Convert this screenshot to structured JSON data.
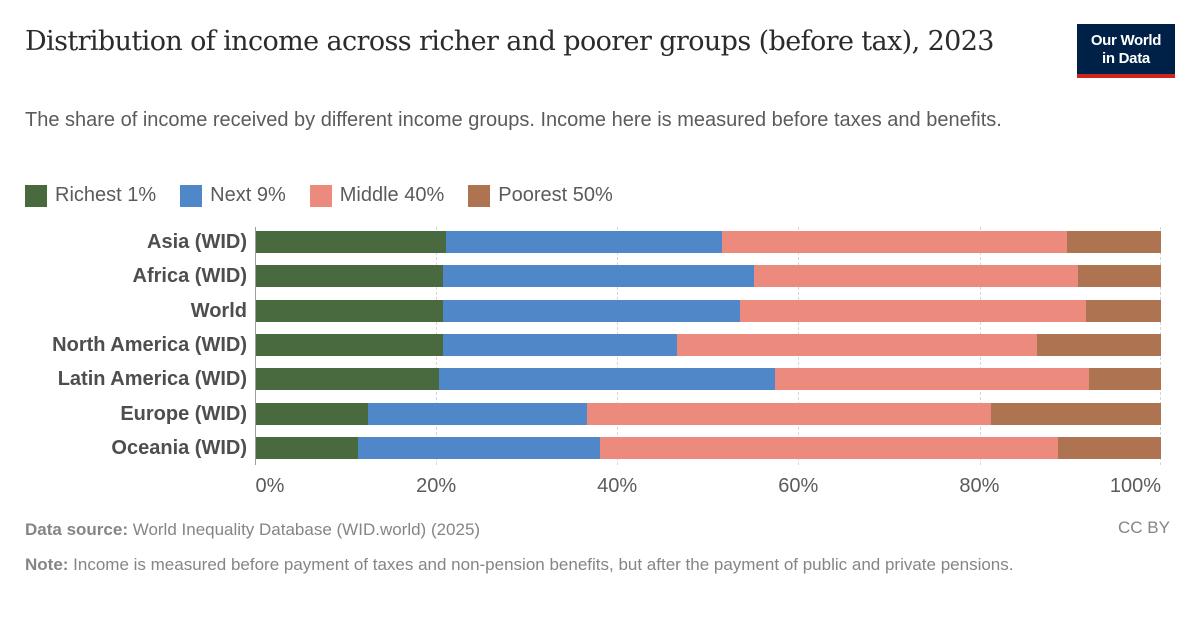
{
  "header": {
    "title": "Distribution of income across richer and poorer groups (before tax), 2023",
    "subtitle": "The share of income received by different income groups. Income here is measured before taxes and benefits.",
    "logo_line1": "Our World",
    "logo_line2": "in Data"
  },
  "legend": [
    {
      "label": "Richest 1%",
      "color": "#486a3e"
    },
    {
      "label": "Next 9%",
      "color": "#5087c8"
    },
    {
      "label": "Middle 40%",
      "color": "#eb8a7d"
    },
    {
      "label": "Poorest 50%",
      "color": "#ae7452"
    }
  ],
  "axis": {
    "ticks": [
      "0%",
      "20%",
      "40%",
      "60%",
      "80%",
      "100%"
    ]
  },
  "footer": {
    "source_label": "Data source:",
    "source_text": " World Inequality Database (WID.world) (2025)",
    "license": "CC BY",
    "note_label": "Note:",
    "note_text": " Income is measured before payment of taxes and non-pension benefits, but after the payment of public and private pensions."
  },
  "chart_data": {
    "type": "bar",
    "orientation": "horizontal",
    "stacked": true,
    "title": "Distribution of income across richer and poorer groups (before tax), 2023",
    "subtitle": "The share of income received by different income groups. Income here is measured before taxes and benefits.",
    "xlabel": "",
    "ylabel": "",
    "xlim": [
      0,
      100
    ],
    "x_tick_labels": [
      "0%",
      "20%",
      "40%",
      "60%",
      "80%",
      "100%"
    ],
    "grid": "vertical dashed",
    "legend_position": "top",
    "categories": [
      "Asia (WID)",
      "Africa (WID)",
      "World",
      "North America (WID)",
      "Latin America (WID)",
      "Europe (WID)",
      "Oceania (WID)"
    ],
    "series": [
      {
        "name": "Richest 1%",
        "color": "#486a3e",
        "values": [
          21.1,
          20.8,
          20.7,
          20.7,
          20.3,
          12.5,
          11.4
        ]
      },
      {
        "name": "Next 9%",
        "color": "#5087c8",
        "values": [
          30.4,
          34.3,
          32.8,
          25.9,
          37.1,
          24.1,
          26.7
        ]
      },
      {
        "name": "Middle 40%",
        "color": "#eb8a7d",
        "values": [
          38.1,
          35.7,
          38.2,
          39.7,
          34.7,
          44.6,
          50.5
        ]
      },
      {
        "name": "Poorest 50%",
        "color": "#ae7452",
        "values": [
          10.4,
          9.2,
          8.3,
          13.7,
          7.9,
          18.8,
          11.4
        ]
      }
    ],
    "source": "World Inequality Database (WID.world) (2025)"
  }
}
